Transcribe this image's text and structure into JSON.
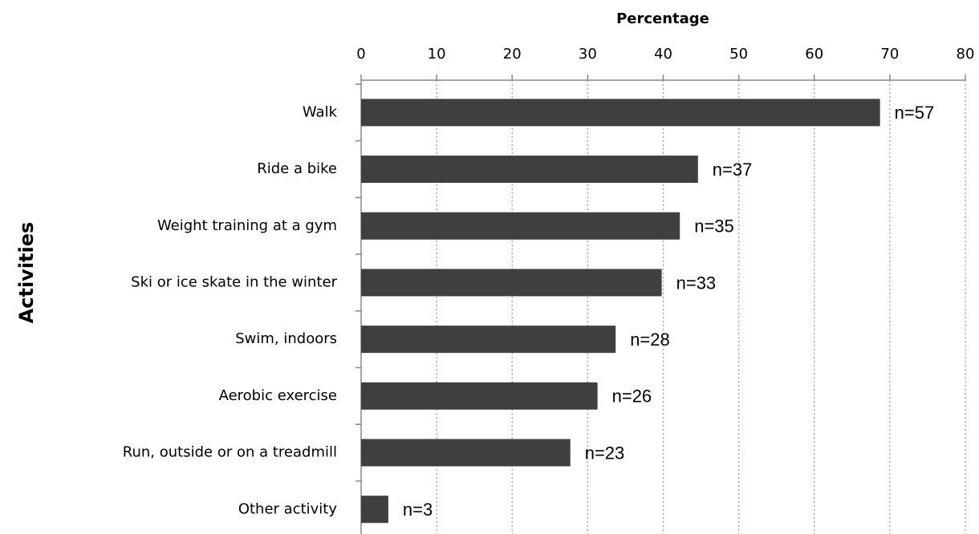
{
  "chart_data": {
    "type": "bar",
    "orientation": "horizontal",
    "x_axis_label": "Percentage",
    "y_axis_label": "Activities",
    "categories": [
      "Walk",
      "Ride a bike",
      "Weight training at a gym",
      "Ski or ice skate in the winter",
      "Swim, indoors",
      "Aerobic exercise",
      "Run, outside or on a treadmill",
      "Other activity"
    ],
    "values": [
      68.7,
      44.6,
      42.2,
      39.8,
      33.7,
      31.3,
      27.7,
      3.6
    ],
    "bar_labels": [
      "n=57",
      "n=37",
      "n=35",
      "n=33",
      "n=28",
      "n=26",
      "n=23",
      "n=3"
    ],
    "color": "#3f3f3f",
    "xlim": [
      0,
      80
    ],
    "xticks": [
      0,
      10,
      20,
      30,
      40,
      50,
      60,
      70,
      80
    ],
    "grid": true
  }
}
